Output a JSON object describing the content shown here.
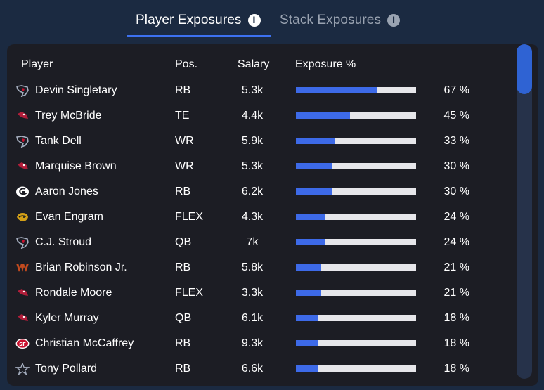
{
  "tabs": {
    "player_exposures": "Player Exposures",
    "stack_exposures": "Stack Exposures",
    "info_glyph": "i"
  },
  "columns": {
    "player": "Player",
    "pos": "Pos.",
    "salary": "Salary",
    "exposure": "Exposure %"
  },
  "colors": {
    "bar_fill": "#3d6ae8",
    "bar_track": "#e6e6ea",
    "accent": "#3d71f0"
  },
  "players": [
    {
      "team_icon": "texans-icon",
      "name": "Devin Singletary",
      "pos": "RB",
      "salary": "5.3k",
      "exposure": 67,
      "exposure_text": "67 %"
    },
    {
      "team_icon": "cardinals-icon",
      "name": "Trey McBride",
      "pos": "TE",
      "salary": "4.4k",
      "exposure": 45,
      "exposure_text": "45 %"
    },
    {
      "team_icon": "texans-icon",
      "name": "Tank Dell",
      "pos": "WR",
      "salary": "5.9k",
      "exposure": 33,
      "exposure_text": "33 %"
    },
    {
      "team_icon": "cardinals-icon",
      "name": "Marquise Brown",
      "pos": "WR",
      "salary": "5.3k",
      "exposure": 30,
      "exposure_text": "30 %"
    },
    {
      "team_icon": "packers-icon",
      "name": "Aaron Jones",
      "pos": "RB",
      "salary": "6.2k",
      "exposure": 30,
      "exposure_text": "30 %"
    },
    {
      "team_icon": "jaguars-icon",
      "name": "Evan Engram",
      "pos": "FLEX",
      "salary": "4.3k",
      "exposure": 24,
      "exposure_text": "24 %"
    },
    {
      "team_icon": "texans-icon",
      "name": "C.J. Stroud",
      "pos": "QB",
      "salary": "7k",
      "exposure": 24,
      "exposure_text": "24 %"
    },
    {
      "team_icon": "commanders-icon",
      "name": "Brian Robinson Jr.",
      "pos": "RB",
      "salary": "5.8k",
      "exposure": 21,
      "exposure_text": "21 %"
    },
    {
      "team_icon": "cardinals-icon",
      "name": "Rondale Moore",
      "pos": "FLEX",
      "salary": "3.3k",
      "exposure": 21,
      "exposure_text": "21 %"
    },
    {
      "team_icon": "cardinals-icon",
      "name": "Kyler Murray",
      "pos": "QB",
      "salary": "6.1k",
      "exposure": 18,
      "exposure_text": "18 %"
    },
    {
      "team_icon": "49ers-icon",
      "name": "Christian McCaffrey",
      "pos": "RB",
      "salary": "9.3k",
      "exposure": 18,
      "exposure_text": "18 %"
    },
    {
      "team_icon": "cowboys-icon",
      "name": "Tony Pollard",
      "pos": "RB",
      "salary": "6.6k",
      "exposure": 18,
      "exposure_text": "18 %"
    }
  ]
}
